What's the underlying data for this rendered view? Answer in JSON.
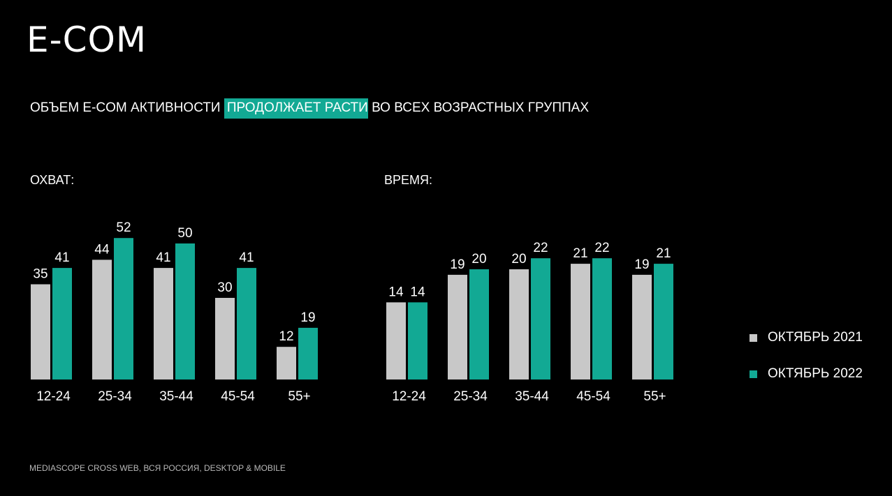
{
  "title": "E-COM",
  "subtitle": {
    "before": "ОБЪЕМ E-COM АКТИВНОСТИ ",
    "highlight": "ПРОДОЛЖАЕТ РАСТИ",
    "after": " ВО ВСЕХ ВОЗРАСТНЫХ ГРУППАХ"
  },
  "colors": {
    "series_2021": "#c8c8c8",
    "series_2022": "#12a994",
    "highlight": "#12a994",
    "background": "#000000"
  },
  "legend": [
    {
      "label": "ОКТЯБРЬ 2021"
    },
    {
      "label": "ОКТЯБРЬ 2022"
    }
  ],
  "source": "MEDIASCOPE CROSS  WEB, ВСЯ РОССИЯ, DESKTOP & MOBILE",
  "chart_data": [
    {
      "type": "bar",
      "title": "ОХВАТ:",
      "categories": [
        "12-24",
        "25-34",
        "35-44",
        "45-54",
        "55+"
      ],
      "series": [
        {
          "name": "ОКТЯБРЬ 2021",
          "values": [
            35,
            44,
            41,
            30,
            12
          ]
        },
        {
          "name": "ОКТЯБРЬ 2022",
          "values": [
            41,
            52,
            50,
            41,
            19
          ]
        }
      ],
      "grid": false,
      "legend_position": "right"
    },
    {
      "type": "bar",
      "title": "ВРЕМЯ:",
      "categories": [
        "12-24",
        "25-34",
        "35-44",
        "45-54",
        "55+"
      ],
      "series": [
        {
          "name": "ОКТЯБРЬ 2021",
          "values": [
            14,
            19,
            20,
            21,
            19
          ]
        },
        {
          "name": "ОКТЯБРЬ 2022",
          "values": [
            14,
            20,
            22,
            22,
            21
          ]
        }
      ],
      "grid": false,
      "legend_position": "right"
    }
  ]
}
